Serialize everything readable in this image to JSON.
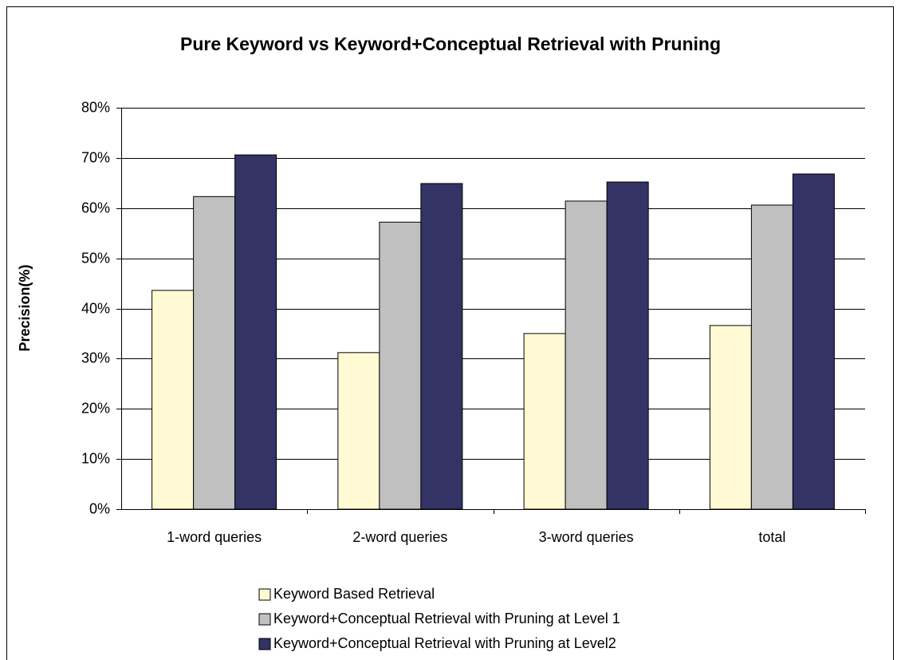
{
  "chart_data": {
    "type": "bar",
    "title": "Pure Keyword  vs  Keyword+Conceptual Retrieval with Pruning",
    "y_label": "Precision(%)",
    "categories": [
      "1-word queries",
      "2-word queries",
      "3-word queries",
      "total"
    ],
    "series": [
      {
        "name": "Keyword Based Retrieval",
        "color": "#fff9d4",
        "values": [
          43.6,
          31.2,
          35.0,
          36.6
        ]
      },
      {
        "name": "Keyword+Conceptual Retrieval with Pruning at Level 1",
        "color": "#c0c0c0",
        "values": [
          62.3,
          57.2,
          61.4,
          60.6
        ]
      },
      {
        "name": "Keyword+Conceptual Retrieval with Pruning at Level2",
        "color": "#333366",
        "values": [
          70.6,
          64.9,
          65.2,
          66.8
        ]
      }
    ],
    "ylim": [
      0,
      80
    ],
    "yticks": [
      {
        "value": 0,
        "label": "0%"
      },
      {
        "value": 10,
        "label": "10%"
      },
      {
        "value": 20,
        "label": "20%"
      },
      {
        "value": 30,
        "label": "30%"
      },
      {
        "value": 40,
        "label": "40%"
      },
      {
        "value": 50,
        "label": "50%"
      },
      {
        "value": 60,
        "label": "60%"
      },
      {
        "value": 70,
        "label": "70%"
      },
      {
        "value": 80,
        "label": "80%"
      }
    ],
    "grid": true,
    "legend": "bottom"
  }
}
